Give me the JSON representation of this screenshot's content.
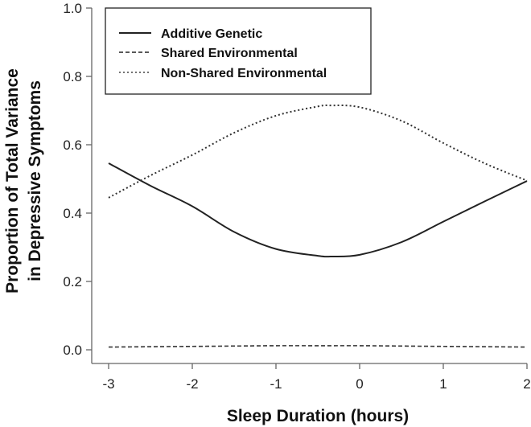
{
  "chart_data": {
    "type": "line",
    "title": "",
    "xlabel": "Sleep Duration (hours)",
    "ylabel_lines": [
      "Proportion of Total Variance",
      "in Depressive Symptoms"
    ],
    "ylabel": "Proportion of Total Variance in Depressive Symptoms",
    "xlim": [
      -3,
      2
    ],
    "ylim": [
      0.0,
      1.0
    ],
    "x_ticks": [
      -3,
      -2,
      -1,
      0,
      1,
      2
    ],
    "x_tick_labels": [
      "-3",
      "-2",
      "-1",
      "0",
      "1",
      "2"
    ],
    "y_ticks": [
      0.0,
      0.2,
      0.4,
      0.6,
      0.8,
      1.0
    ],
    "y_tick_labels": [
      "0.0",
      "0.2",
      "0.4",
      "0.6",
      "0.8",
      "1.0"
    ],
    "grid": false,
    "legend_position": "upper left",
    "x": [
      -3,
      -2.5,
      -2,
      -1.5,
      -1,
      -0.5,
      -0.35,
      0,
      0.5,
      1,
      1.5,
      2
    ],
    "series": [
      {
        "name": "Additive Genetic",
        "style": "solid",
        "color": "#222222",
        "values": [
          0.546,
          0.48,
          0.42,
          0.345,
          0.295,
          0.275,
          0.273,
          0.278,
          0.315,
          0.375,
          0.435,
          0.494
        ]
      },
      {
        "name": "Shared Environmental",
        "style": "dashed",
        "color": "#333333",
        "values": [
          0.008,
          0.009,
          0.01,
          0.011,
          0.012,
          0.012,
          0.012,
          0.012,
          0.011,
          0.01,
          0.009,
          0.008
        ]
      },
      {
        "name": "Non-Shared Environmental",
        "style": "dotted",
        "color": "#333333",
        "values": [
          0.445,
          0.51,
          0.57,
          0.635,
          0.685,
          0.712,
          0.715,
          0.71,
          0.67,
          0.605,
          0.545,
          0.495
        ]
      }
    ]
  },
  "legend": {
    "items": [
      {
        "label": "Additive Genetic",
        "style": "solid"
      },
      {
        "label": "Shared Environmental",
        "style": "dashed"
      },
      {
        "label": "Non-Shared Environmental",
        "style": "dotted"
      }
    ]
  }
}
